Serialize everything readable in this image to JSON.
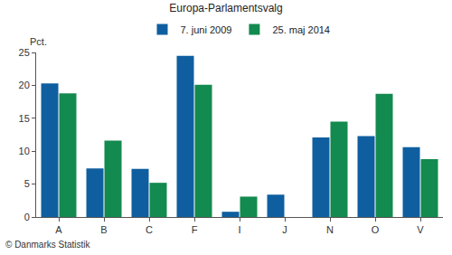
{
  "chart_data": {
    "type": "bar",
    "title": "Europa-Parlamentsvalg",
    "ylabel": "Pct.",
    "source": "© Danmarks Statistik",
    "categories": [
      "A",
      "B",
      "C",
      "F",
      "I",
      "J",
      "N",
      "O",
      "V"
    ],
    "series": [
      {
        "name": "7. juni 2009",
        "color": "#0f5fa0",
        "values": [
          20.3,
          7.4,
          7.3,
          24.5,
          0.8,
          3.4,
          12.1,
          12.3,
          10.6
        ]
      },
      {
        "name": "25. maj 2014",
        "color": "#138a4f",
        "values": [
          18.8,
          11.6,
          5.2,
          20.1,
          3.1,
          null,
          14.5,
          18.7,
          8.8
        ]
      }
    ],
    "ylim": [
      0,
      25
    ],
    "yticks": [
      0,
      5,
      10,
      15,
      20,
      25
    ],
    "grid": false,
    "legend": "top"
  }
}
